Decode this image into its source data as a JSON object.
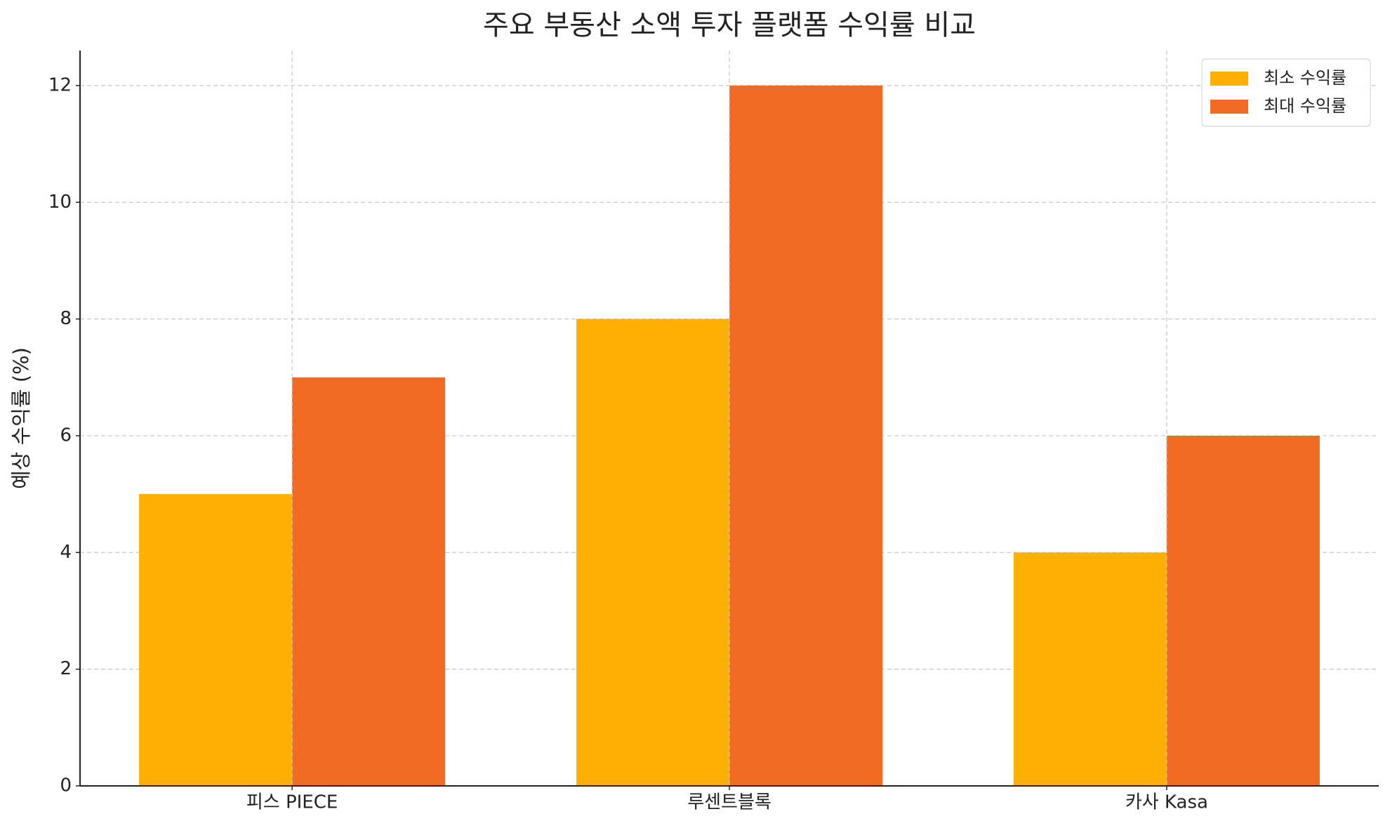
{
  "chart_data": {
    "type": "bar",
    "title": "주요 부동산 소액 투자 플랫폼 수익률 비교",
    "y_label": "예상 수익률 (%)",
    "categories": [
      "피스 PIECE",
      "루센트블록",
      "카사 Kasa"
    ],
    "series": [
      {
        "name": "최소 수익률",
        "color": "#fdb003",
        "values": [
          5,
          8,
          4
        ]
      },
      {
        "name": "최대 수익률",
        "color": "#f26b22",
        "values": [
          7,
          12,
          6
        ]
      }
    ],
    "ylim": [
      0,
      12.6
    ],
    "yticks": [
      0,
      2,
      4,
      6,
      8,
      10,
      12
    ],
    "grid": true,
    "legend": "upper right"
  }
}
